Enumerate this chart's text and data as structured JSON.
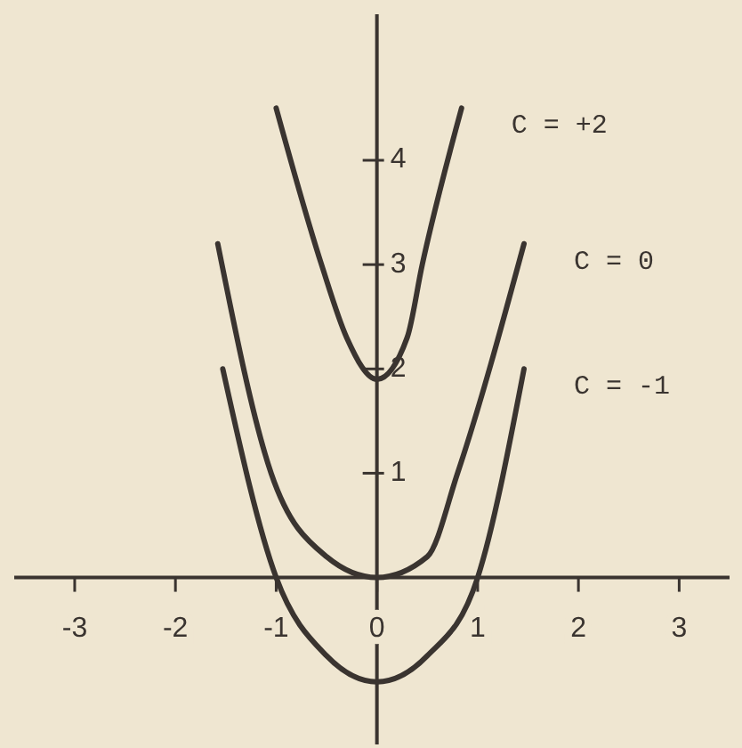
{
  "chart_data": {
    "type": "line",
    "xlim": [
      -3.6,
      3.5
    ],
    "ylim": [
      -1.6,
      5.4
    ],
    "xticks": [
      -3,
      -2,
      -1,
      0,
      1,
      2,
      3
    ],
    "yticks": [
      1,
      2,
      3,
      4
    ],
    "grid": false,
    "marker": "none",
    "line_style": "solid",
    "series": [
      {
        "name": "C = +2",
        "color": "#3a3430",
        "x": [
          -1.0,
          -0.55,
          -0.3,
          0,
          0.3,
          0.45,
          0.84
        ],
        "values": [
          4.5,
          3,
          2.3,
          1.9,
          2.3,
          3,
          4.5
        ]
      },
      {
        "name": "C = 0",
        "color": "#3a3430",
        "x": [
          -1.58,
          -1.05,
          -0.5,
          0,
          0.5,
          0.8,
          1.46
        ],
        "values": [
          3.2,
          1,
          0.2,
          0,
          0.2,
          1,
          3.2
        ]
      },
      {
        "name": "C = -1",
        "color": "#3a3430",
        "x": [
          -1.53,
          -1,
          -0.5,
          0,
          0.5,
          1,
          1.46
        ],
        "values": [
          2,
          0,
          -0.75,
          -1,
          -0.75,
          0,
          2
        ]
      }
    ]
  }
}
